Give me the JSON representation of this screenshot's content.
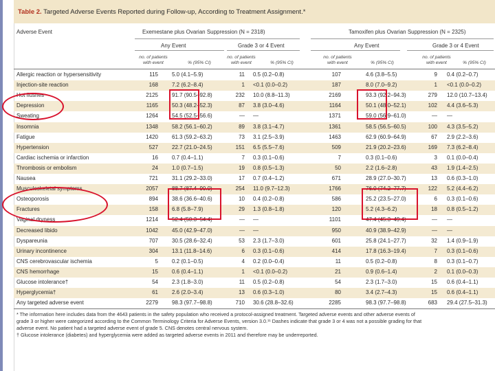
{
  "title": {
    "prefix": "Table 2.",
    "text": "Targeted Adverse Events Reported during Follow-up, According to Treatment Assignment.*"
  },
  "header": {
    "adverse_event": "Adverse Event",
    "group1": "Exemestane plus Ovarian Suppression (N = 2318)",
    "group2": "Tamoxifen plus Ovarian Suppression (N = 2325)",
    "any_event": "Any Event",
    "grade34": "Grade 3 or 4 Event",
    "no_patients_l1": "no. of patients",
    "no_patients_l2": "with event",
    "pct_ci": "% (95% CI)"
  },
  "rows": [
    {
      "event": "Allergic reaction or hypersensitivity",
      "e_n": "115",
      "e_pct": "5.0 (4.1–5.9)",
      "e3_n": "11",
      "e3_pct": "0.5 (0.2–0.8)",
      "t_n": "107",
      "t_pct": "4.6 (3.8–5.5)",
      "t3_n": "9",
      "t3_pct": "0.4 (0.2–0.7)"
    },
    {
      "event": "Injection-site reaction",
      "e_n": "168",
      "e_pct": "7.2 (6.2–8.4)",
      "e3_n": "1",
      "e3_pct": "<0.1 (0.0–0.2)",
      "t_n": "187",
      "t_pct": "8.0 (7.0–9.2)",
      "t3_n": "1",
      "t3_pct": "<0.1 (0.0–0.2)"
    },
    {
      "event": "Hot flushes",
      "e_n": "2125",
      "e_pct": "91.7 (90.5–92.8)",
      "e3_n": "232",
      "e3_pct": "10.0 (8.8–11.3)",
      "t_n": "2169",
      "t_pct": "93.3 (92.2–94.3)",
      "t3_n": "279",
      "t3_pct": "12.0 (10.7–13.4)"
    },
    {
      "event": "Depression",
      "e_n": "1165",
      "e_pct": "50.3 (48.2–52.3)",
      "e3_n": "87",
      "e3_pct": "3.8 (3.0–4.6)",
      "t_n": "1164",
      "t_pct": "50.1 (48.0–52.1)",
      "t3_n": "102",
      "t3_pct": "4.4 (3.6–5.3)"
    },
    {
      "event": "Sweating",
      "e_n": "1264",
      "e_pct": "54.5 (52.5–56.6)",
      "e3_n": "—",
      "e3_pct": "—",
      "t_n": "1371",
      "t_pct": "59.0 (56.9–61.0)",
      "t3_n": "—",
      "t3_pct": "—"
    },
    {
      "event": "Insomnia",
      "e_n": "1348",
      "e_pct": "58.2 (56.1–60.2)",
      "e3_n": "89",
      "e3_pct": "3.8 (3.1–4.7)",
      "t_n": "1361",
      "t_pct": "58.5 (56.5–60.5)",
      "t3_n": "100",
      "t3_pct": "4.3 (3.5–5.2)"
    },
    {
      "event": "Fatigue",
      "e_n": "1420",
      "e_pct": "61.3 (59.2–63.2)",
      "e3_n": "73",
      "e3_pct": "3.1 (2.5–3.9)",
      "t_n": "1463",
      "t_pct": "62.9 (60.9–64.9)",
      "t3_n": "67",
      "t3_pct": "2.9 (2.2–3.6)"
    },
    {
      "event": "Hypertension",
      "e_n": "527",
      "e_pct": "22.7 (21.0–24.5)",
      "e3_n": "151",
      "e3_pct": "6.5 (5.5–7.6)",
      "t_n": "509",
      "t_pct": "21.9 (20.2–23.6)",
      "t3_n": "169",
      "t3_pct": "7.3 (6.2–8.4)"
    },
    {
      "event": "Cardiac ischemia or infarction",
      "e_n": "16",
      "e_pct": "0.7 (0.4–1.1)",
      "e3_n": "7",
      "e3_pct": "0.3 (0.1–0.6)",
      "t_n": "7",
      "t_pct": "0.3 (0.1–0.6)",
      "t3_n": "3",
      "t3_pct": "0.1 (0.0–0.4)"
    },
    {
      "event": "Thrombosis or embolism",
      "e_n": "24",
      "e_pct": "1.0 (0.7–1.5)",
      "e3_n": "19",
      "e3_pct": "0.8 (0.5–1.3)",
      "t_n": "50",
      "t_pct": "2.2 (1.6–2.8)",
      "t3_n": "43",
      "t3_pct": "1.9 (1.4–2.5)"
    },
    {
      "event": "Nausea",
      "e_n": "721",
      "e_pct": "31.1 (29.2–33.0)",
      "e3_n": "17",
      "e3_pct": "0.7 (0.4–1.2)",
      "t_n": "671",
      "t_pct": "28.9 (27.0–30.7)",
      "t3_n": "13",
      "t3_pct": "0.6 (0.3–1.0)"
    },
    {
      "event": "Musculoskeletal symptoms",
      "e_n": "2057",
      "e_pct": "88.7 (87.4–90.0)",
      "e3_n": "254",
      "e3_pct": "11.0 (9.7–12.3)",
      "t_n": "1766",
      "t_pct": "76.0 (74.2–77.7)",
      "t3_n": "122",
      "t3_pct": "5.2 (4.4–6.2)"
    },
    {
      "event": "Osteoporosis",
      "e_n": "894",
      "e_pct": "38.6 (36.6–40.6)",
      "e3_n": "10",
      "e3_pct": "0.4 (0.2–0.8)",
      "t_n": "586",
      "t_pct": "25.2 (23.5–27.0)",
      "t3_n": "6",
      "t3_pct": "0.3 (0.1–0.6)"
    },
    {
      "event": "Fractures",
      "e_n": "158",
      "e_pct": "6.8 (5.8–7.9)",
      "e3_n": "29",
      "e3_pct": "1.3 (0.8–1.8)",
      "t_n": "120",
      "t_pct": "5.2 (4.3–6.2)",
      "t3_n": "18",
      "t3_pct": "0.8 (0.5–1.2)"
    },
    {
      "event": "Vaginal dryness",
      "e_n": "1214",
      "e_pct": "52.4 (50.3–54.4)",
      "e3_n": "—",
      "e3_pct": "—",
      "t_n": "1101",
      "t_pct": "47.4 (45.3–49.4)",
      "t3_n": "—",
      "t3_pct": "—"
    },
    {
      "event": "Decreased libido",
      "e_n": "1042",
      "e_pct": "45.0 (42.9–47.0)",
      "e3_n": "—",
      "e3_pct": "—",
      "t_n": "950",
      "t_pct": "40.9 (38.9–42.9)",
      "t3_n": "—",
      "t3_pct": "—"
    },
    {
      "event": "Dyspareunia",
      "e_n": "707",
      "e_pct": "30.5 (28.6–32.4)",
      "e3_n": "53",
      "e3_pct": "2.3 (1.7–3.0)",
      "t_n": "601",
      "t_pct": "25.8 (24.1–27.7)",
      "t3_n": "32",
      "t3_pct": "1.4 (0.9–1.9)"
    },
    {
      "event": "Urinary incontinence",
      "e_n": "304",
      "e_pct": "13.1 (11.8–14.6)",
      "e3_n": "6",
      "e3_pct": "0.3 (0.1–0.6)",
      "t_n": "414",
      "t_pct": "17.8 (16.3–19.4)",
      "t3_n": "7",
      "t3_pct": "0.3 (0.1–0.6)"
    },
    {
      "event": "CNS cerebrovascular ischemia",
      "e_n": "5",
      "e_pct": "0.2 (0.1–0.5)",
      "e3_n": "4",
      "e3_pct": "0.2 (0.0–0.4)",
      "t_n": "11",
      "t_pct": "0.5 (0.2–0.8)",
      "t3_n": "8",
      "t3_pct": "0.3 (0.1–0.7)"
    },
    {
      "event": "CNS hemorrhage",
      "e_n": "15",
      "e_pct": "0.6 (0.4–1.1)",
      "e3_n": "1",
      "e3_pct": "<0.1 (0.0–0.2)",
      "t_n": "21",
      "t_pct": "0.9 (0.6–1.4)",
      "t3_n": "2",
      "t3_pct": "0.1 (0.0–0.3)"
    },
    {
      "event": "Glucose intolerance†",
      "e_n": "54",
      "e_pct": "2.3 (1.8–3.0)",
      "e3_n": "11",
      "e3_pct": "0.5 (0.2–0.8)",
      "t_n": "54",
      "t_pct": "2.3 (1.7–3.0)",
      "t3_n": "15",
      "t3_pct": "0.6 (0.4–1.1)"
    },
    {
      "event": "Hyperglycemia†",
      "e_n": "61",
      "e_pct": "2.6 (2.0–3.4)",
      "e3_n": "13",
      "e3_pct": "0.6 (0.3–1.0)",
      "t_n": "80",
      "t_pct": "3.4 (2.7–4.3)",
      "t3_n": "15",
      "t3_pct": "0.6 (0.4–1.1)"
    },
    {
      "event": "Any targeted adverse event",
      "e_n": "2279",
      "e_pct": "98.3 (97.7–98.8)",
      "e3_n": "710",
      "e3_pct": "30.6 (28.8–32.6)",
      "t_n": "2285",
      "t_pct": "98.3 (97.7–98.8)",
      "t3_n": "683",
      "t3_pct": "29.4 (27.5–31.3)"
    }
  ],
  "footnotes": [
    "* The information here includes data from the 4643 patients in the safety population who received a protocol-assigned treatment. Targeted adverse events and other adverse events of",
    "grade 3 or higher were categorized according to the Common Terminology Criteria for Adverse Events, version 3.0.¹¹ Dashes indicate that grade 3 or 4 was not a possible grading for that",
    "adverse event. No patient had a targeted adverse event of grade 5. CNS denotes central nervous system.",
    "† Glucose intolerance (diabetes) and hyperglycemia were added as targeted adverse events in 2011 and therefore may be underreported."
  ],
  "colors": {
    "title_band": "#f2e6c9",
    "title_prefix": "#b1301f",
    "row_shade": "#f4ead2",
    "highlight": "#d8122c"
  }
}
